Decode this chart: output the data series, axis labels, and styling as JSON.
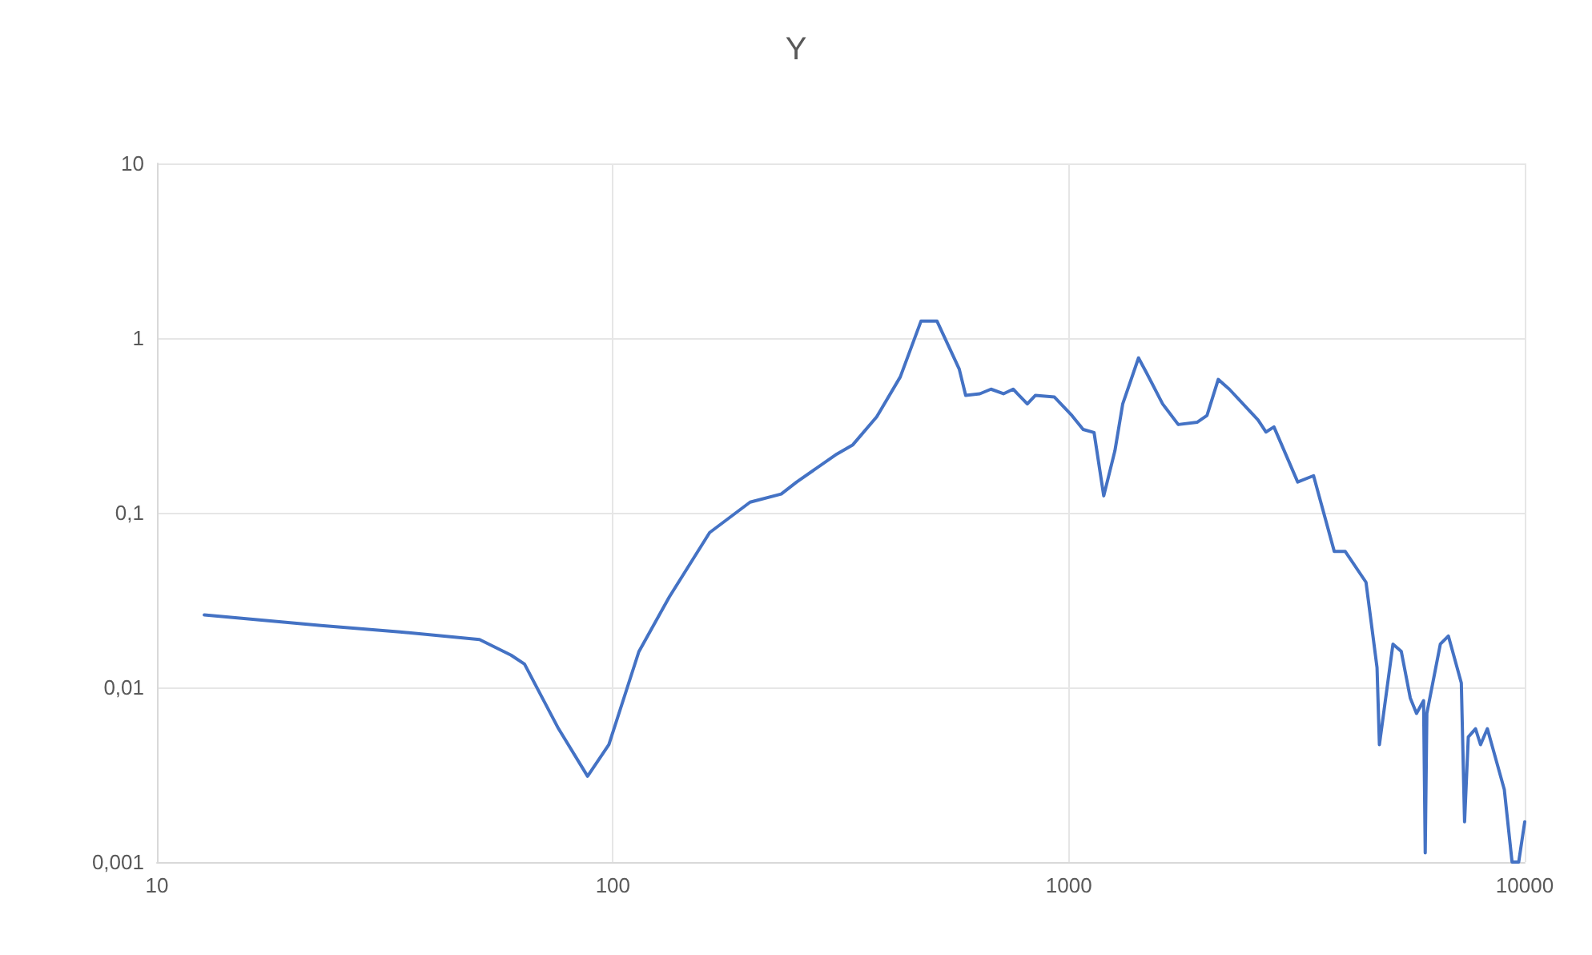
{
  "chart_data": {
    "type": "line",
    "title": "Y",
    "log": "xy",
    "grid": true,
    "marker": "none",
    "line_style": "solid",
    "xlim": [
      10,
      10000
    ],
    "xticks": [
      10,
      100,
      1000,
      10000
    ],
    "ylim": [
      0.001,
      10
    ],
    "yticks": [
      {
        "value": 0.001,
        "label": "0,001"
      },
      {
        "value": 0.01,
        "label": "0,01"
      },
      {
        "value": 0.1,
        "label": "0,1"
      },
      {
        "value": 1,
        "label": "1"
      },
      {
        "value": 10,
        "label": "10"
      }
    ],
    "series": [
      {
        "color": "#4472c4",
        "x": [
          12.7,
          22.9,
          34.1,
          51,
          59.8,
          64,
          76,
          88,
          98,
          114,
          133,
          163,
          200,
          234,
          253,
          310,
          336,
          379,
          427,
          474,
          514,
          575,
          594,
          638,
          675,
          719,
          755,
          811,
          845,
          930,
          1016,
          1075,
          1136,
          1193,
          1262,
          1313,
          1422,
          1482,
          1606,
          1738,
          1914,
          2009,
          2127,
          2249,
          2600,
          2706,
          2818,
          3177,
          3442,
          3822,
          4040,
          4486,
          4743,
          4800,
          5140,
          5360,
          5610,
          5790,
          6000,
          6050,
          6100,
          6530,
          6800,
          7260,
          7380,
          7520,
          7800,
          8000,
          8280,
          9020,
          9380,
          9700,
          10000
        ],
        "values": [
          0.026,
          0.0226,
          0.0208,
          0.0188,
          0.0153,
          0.0136,
          0.0058,
          0.0031,
          0.0047,
          0.016,
          0.033,
          0.077,
          0.115,
          0.128,
          0.15,
          0.217,
          0.245,
          0.354,
          0.6,
          1.25,
          1.25,
          0.665,
          0.47,
          0.48,
          0.51,
          0.48,
          0.51,
          0.42,
          0.47,
          0.46,
          0.36,
          0.3,
          0.288,
          0.125,
          0.226,
          0.42,
          0.77,
          0.63,
          0.42,
          0.32,
          0.33,
          0.36,
          0.58,
          0.51,
          0.34,
          0.29,
          0.31,
          0.15,
          0.163,
          0.06,
          0.06,
          0.04,
          0.013,
          0.0047,
          0.0177,
          0.0161,
          0.0087,
          0.0071,
          0.0084,
          0.00113,
          0.0071,
          0.0177,
          0.0197,
          0.0106,
          0.0017,
          0.0052,
          0.0058,
          0.0047,
          0.0058,
          0.0026,
          0.001,
          0.001,
          0.0017
        ]
      }
    ]
  }
}
